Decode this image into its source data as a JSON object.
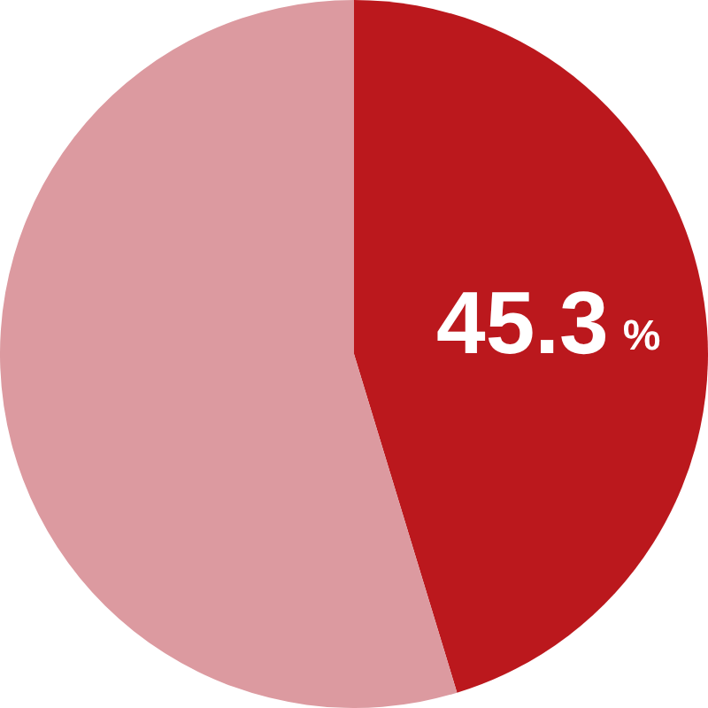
{
  "chart_data": {
    "type": "pie",
    "categories": [
      null,
      null
    ],
    "values": [
      45.3,
      54.7
    ],
    "colors": [
      "#bb181d",
      "#dc9aa0"
    ],
    "value_labels": [
      "45.3 %",
      null
    ],
    "legend": false
  }
}
